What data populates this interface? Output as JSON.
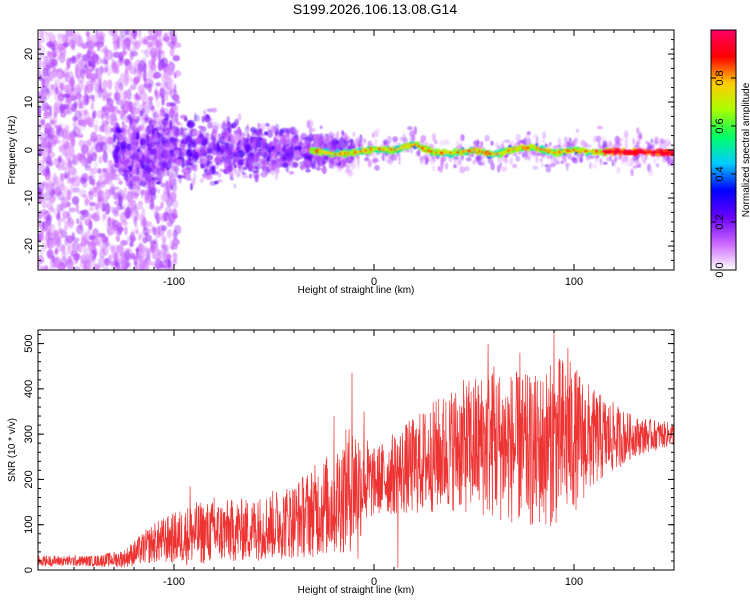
{
  "title": "S199.2026.106.13.08.G14",
  "chart_data": [
    {
      "type": "heatmap",
      "title": "S199.2026.106.13.08.G14",
      "xlabel": "Height of straight line (km)",
      "ylabel": "Frequency (Hz)",
      "xlim": [
        -168,
        150
      ],
      "ylim": [
        -25,
        25
      ],
      "xticks": [
        -100,
        0,
        100
      ],
      "yticks": [
        -20,
        -10,
        0,
        10,
        20
      ],
      "colorbar": {
        "label": "Normalized spectral amplitude",
        "range": [
          0,
          1
        ],
        "ticks": [
          "0.0",
          "0.2",
          "0.4",
          "0.6",
          "0.8"
        ],
        "colors": [
          "#ffffff",
          "#cc66ff",
          "#6600ff",
          "#0000ff",
          "#00ccff",
          "#00ff66",
          "#aaff00",
          "#ffcc00",
          "#ff0000",
          "#ff0066"
        ]
      },
      "ridge_center_hz": [
        {
          "x": -30,
          "y": 0.0
        },
        {
          "x": -20,
          "y": -0.9
        },
        {
          "x": -10,
          "y": -0.5
        },
        {
          "x": 0,
          "y": 0.2
        },
        {
          "x": 10,
          "y": 0.0
        },
        {
          "x": 20,
          "y": 1.2
        },
        {
          "x": 30,
          "y": -0.6
        },
        {
          "x": 40,
          "y": -0.6
        },
        {
          "x": 50,
          "y": 0.0
        },
        {
          "x": 60,
          "y": -1.0
        },
        {
          "x": 70,
          "y": 0.2
        },
        {
          "x": 80,
          "y": 0.6
        },
        {
          "x": 90,
          "y": -0.6
        },
        {
          "x": 100,
          "y": 0.0
        },
        {
          "x": 110,
          "y": -0.4
        },
        {
          "x": 130,
          "y": -0.4
        },
        {
          "x": 150,
          "y": -0.6
        }
      ]
    },
    {
      "type": "line",
      "xlabel": "Height of straight line (km)",
      "ylabel": "SNR (10 * v/v)",
      "xlim": [
        -168,
        150
      ],
      "ylim": [
        0,
        530
      ],
      "xticks": [
        -100,
        0,
        100
      ],
      "yticks": [
        0,
        100,
        200,
        300,
        400,
        500
      ],
      "color": "#ee3333",
      "envelope": [
        {
          "x": -168,
          "mean": 20,
          "amp": 12
        },
        {
          "x": -140,
          "mean": 20,
          "amp": 12
        },
        {
          "x": -125,
          "mean": 25,
          "amp": 20
        },
        {
          "x": -110,
          "mean": 60,
          "amp": 45
        },
        {
          "x": -90,
          "mean": 80,
          "amp": 70
        },
        {
          "x": -60,
          "mean": 90,
          "amp": 70
        },
        {
          "x": -40,
          "mean": 110,
          "amp": 85
        },
        {
          "x": -20,
          "mean": 150,
          "amp": 120
        },
        {
          "x": -10,
          "mean": 190,
          "amp": 150
        },
        {
          "x": 0,
          "mean": 195,
          "amp": 75
        },
        {
          "x": 20,
          "mean": 230,
          "amp": 110
        },
        {
          "x": 40,
          "mean": 270,
          "amp": 140
        },
        {
          "x": 60,
          "mean": 280,
          "amp": 170
        },
        {
          "x": 80,
          "mean": 260,
          "amp": 170
        },
        {
          "x": 95,
          "mean": 290,
          "amp": 190
        },
        {
          "x": 110,
          "mean": 290,
          "amp": 110
        },
        {
          "x": 130,
          "mean": 295,
          "amp": 45
        },
        {
          "x": 150,
          "mean": 300,
          "amp": 25
        }
      ],
      "spikes": [
        {
          "x": -11,
          "y": 435
        },
        {
          "x": -20,
          "y": 340
        },
        {
          "x": -5,
          "y": 350
        },
        {
          "x": 45,
          "y": 370
        },
        {
          "x": 57,
          "y": 500
        },
        {
          "x": 60,
          "y": 450
        },
        {
          "x": 73,
          "y": 480
        },
        {
          "x": 90,
          "y": 525
        },
        {
          "x": 97,
          "y": 490
        },
        {
          "x": -92,
          "y": 185
        },
        {
          "x": -80,
          "y": 160
        },
        {
          "x": -58,
          "y": 150
        },
        {
          "x": 12,
          "y": 5
        },
        {
          "x": -8,
          "y": 25
        }
      ]
    }
  ]
}
